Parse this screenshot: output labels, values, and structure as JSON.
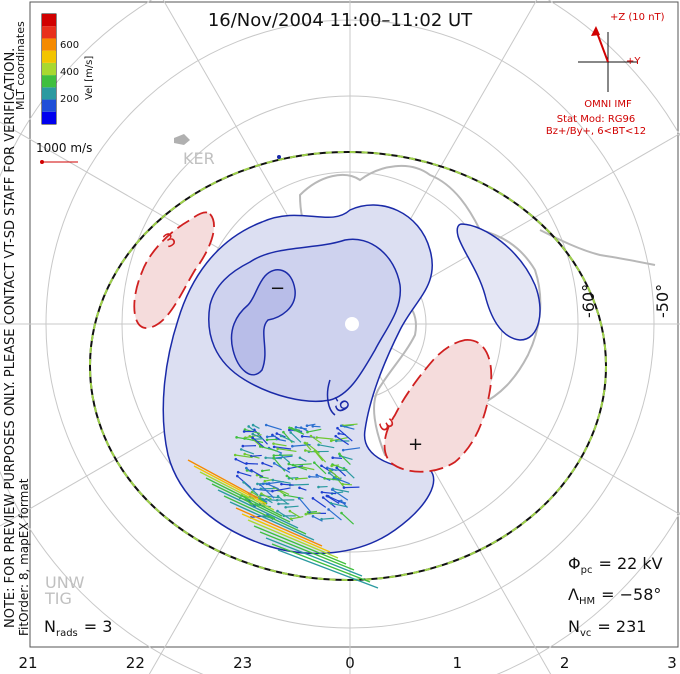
{
  "title": "16/Nov/2004 11:00–11:02 UT",
  "colorbar": {
    "label": "Vel [m/s]",
    "ticks": [
      "600",
      "400",
      "200"
    ],
    "colors": [
      "#0000ee",
      "#1f4fd8",
      "#2b9aa0",
      "#3fbf3f",
      "#a8d830",
      "#f2c400",
      "#f58a00",
      "#e8301c",
      "#d00000"
    ]
  },
  "coords_label": "MLT coordinates",
  "scale_label": "1000 m/s",
  "watermark": "NOTE: FOR PREVIEW PURPOSES ONLY. PLEASE CONTACT VT-SD STAFF FOR VERIFICATION.",
  "fit_order": "FitOrder: 8, mapEX format",
  "imf": {
    "bz_label": "+Z (10 nT)",
    "by_label": "+Y",
    "source": "OMNI IMF",
    "stat_mod": "Stat Mod: RG96",
    "stat_cond": "Bz+/By+, 6<BT<12"
  },
  "stations": {
    "ker": "KER",
    "unw": "UNW",
    "tig": "TIG"
  },
  "lat_labels": [
    "-60°",
    "-50°"
  ],
  "potential_labels": {
    "neg": "-9",
    "pos": "3"
  },
  "stats": {
    "phi_pc_sym": "Φ",
    "phi_pc_sub": "pc",
    "phi_pc_val": "= 22 kV",
    "lambda_sym": "Λ",
    "lambda_sub": "HM",
    "lambda_val": "= −58°",
    "nvc_sym": "N",
    "nvc_sub": "vc",
    "nvc_val": "= 231",
    "nrads_sym": "N",
    "nrads_sub": "rads",
    "nrads_val": "= 3"
  },
  "mlt_ticks": [
    "21",
    "22",
    "23",
    "0",
    "1",
    "2",
    "3"
  ],
  "colors": {
    "neg_contour": "#1a2aa8",
    "neg_fill": "#dcdff2",
    "neg_fill_deep": "#b8bde8",
    "pos_contour": "#d02020",
    "pos_fill": "#f5dcdc",
    "grid": "#c8c8c8",
    "coast": "#b8b8b8",
    "imf_text": "#d00000"
  }
}
